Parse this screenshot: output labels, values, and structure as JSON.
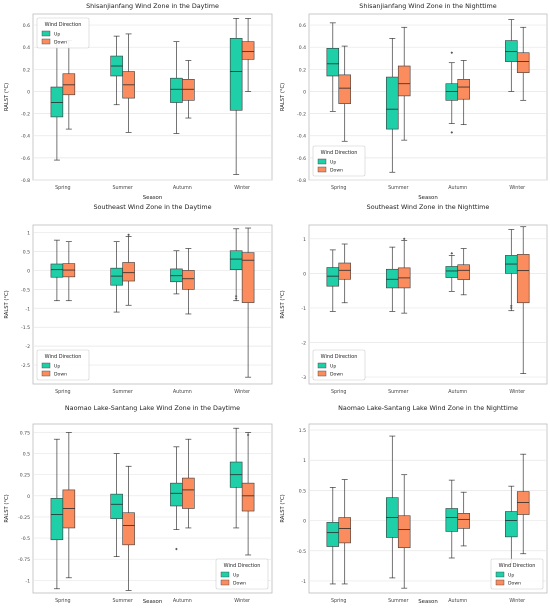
{
  "figure": {
    "colors": {
      "up": "#1fcfa8",
      "down": "#fb8c5e",
      "grid": "#e6e6e6",
      "axis": "#444444",
      "frame": "#bdbdbd"
    }
  },
  "chart_data": [
    {
      "type": "box",
      "title": "Shisanjianfang Wind Zone in the Daytime",
      "xlabel": "Season",
      "ylabel": "RALST (°C)",
      "categories": [
        "Spring",
        "Summer",
        "Autumn",
        "Winter"
      ],
      "yticks": [
        0.6,
        0.4,
        0.2,
        0.0,
        -0.2,
        -0.4,
        -0.6,
        -0.8
      ],
      "ylim": [
        -0.8,
        0.7
      ],
      "legend": {
        "title": "Wind Direction",
        "items": [
          "Up",
          "Down"
        ],
        "position": "top-left"
      },
      "series": [
        {
          "name": "Up",
          "color_key": "up",
          "boxes": [
            {
              "min": -0.62,
              "q1": -0.23,
              "median": -0.1,
              "q3": 0.04,
              "max": 0.45,
              "outliers": []
            },
            {
              "min": -0.12,
              "q1": 0.14,
              "median": 0.23,
              "q3": 0.32,
              "max": 0.5,
              "outliers": []
            },
            {
              "min": -0.38,
              "q1": -0.1,
              "median": 0.02,
              "q3": 0.12,
              "max": 0.45,
              "outliers": []
            },
            {
              "min": -0.75,
              "q1": -0.17,
              "median": 0.18,
              "q3": 0.48,
              "max": 0.66,
              "outliers": []
            }
          ]
        },
        {
          "name": "Down",
          "color_key": "down",
          "boxes": [
            {
              "min": -0.34,
              "q1": -0.03,
              "median": 0.06,
              "q3": 0.16,
              "max": 0.46,
              "outliers": []
            },
            {
              "min": -0.37,
              "q1": -0.06,
              "median": 0.06,
              "q3": 0.18,
              "max": 0.52,
              "outliers": []
            },
            {
              "min": -0.24,
              "q1": -0.08,
              "median": 0.02,
              "q3": 0.11,
              "max": 0.28,
              "outliers": []
            },
            {
              "min": 0.0,
              "q1": 0.29,
              "median": 0.36,
              "q3": 0.45,
              "max": 0.66,
              "outliers": []
            }
          ]
        }
      ]
    },
    {
      "type": "box",
      "title": "Shisanjianfang Wind Zone in the Nighttime",
      "xlabel": "Season",
      "ylabel": "RALST (°C)",
      "categories": [
        "Spring",
        "Summer",
        "Autumn",
        "Winter"
      ],
      "yticks": [
        0.6,
        0.4,
        0.2,
        0.0,
        -0.2,
        -0.4,
        -0.6,
        -0.8
      ],
      "ylim": [
        -0.8,
        0.7
      ],
      "legend": {
        "title": "Wind Direction",
        "items": [
          "Up",
          "Down"
        ],
        "position": "bottom-left"
      },
      "series": [
        {
          "name": "Up",
          "color_key": "up",
          "boxes": [
            {
              "min": -0.18,
              "q1": 0.14,
              "median": 0.25,
              "q3": 0.39,
              "max": 0.62,
              "outliers": []
            },
            {
              "min": -0.73,
              "q1": -0.34,
              "median": -0.16,
              "q3": 0.13,
              "max": 0.48,
              "outliers": []
            },
            {
              "min": -0.29,
              "q1": -0.08,
              "median": 0.0,
              "q3": 0.07,
              "max": 0.26,
              "outliers": [
                0.35,
                -0.37
              ]
            },
            {
              "min": 0.0,
              "q1": 0.27,
              "median": 0.36,
              "q3": 0.46,
              "max": 0.65,
              "outliers": []
            }
          ]
        },
        {
          "name": "Down",
          "color_key": "down",
          "boxes": [
            {
              "min": -0.45,
              "q1": -0.11,
              "median": 0.03,
              "q3": 0.15,
              "max": 0.41,
              "outliers": []
            },
            {
              "min": -0.44,
              "q1": -0.04,
              "median": 0.07,
              "q3": 0.23,
              "max": 0.58,
              "outliers": []
            },
            {
              "min": -0.3,
              "q1": -0.07,
              "median": 0.04,
              "q3": 0.11,
              "max": 0.28,
              "outliers": []
            },
            {
              "min": -0.08,
              "q1": 0.17,
              "median": 0.27,
              "q3": 0.35,
              "max": 0.58,
              "outliers": []
            }
          ]
        }
      ]
    },
    {
      "type": "box",
      "title": "Southeast Wind Zone in the Daytime",
      "xlabel": "",
      "ylabel": "RALST (°C)",
      "categories": [
        "Spring",
        "Summer",
        "Autumn",
        "Winter"
      ],
      "yticks": [
        1.0,
        0.5,
        0.0,
        -0.5,
        -1.0,
        -1.5,
        -2.0,
        -2.5
      ],
      "ylim": [
        -3.0,
        1.2
      ],
      "legend": {
        "title": "Wind Direction",
        "items": [
          "Up",
          "Down"
        ],
        "position": "bottom-left"
      },
      "series": [
        {
          "name": "Up",
          "color_key": "up",
          "boxes": [
            {
              "min": -0.8,
              "q1": -0.18,
              "median": 0.02,
              "q3": 0.17,
              "max": 0.8,
              "outliers": []
            },
            {
              "min": -1.1,
              "q1": -0.39,
              "median": -0.15,
              "q3": 0.06,
              "max": 0.76,
              "outliers": []
            },
            {
              "min": -0.62,
              "q1": -0.3,
              "median": -0.14,
              "q3": 0.04,
              "max": 0.52,
              "outliers": []
            },
            {
              "min": -0.8,
              "q1": 0.02,
              "median": 0.3,
              "q3": 0.52,
              "max": 1.1,
              "outliers": [
                -0.68,
                -0.74
              ]
            }
          ]
        },
        {
          "name": "Down",
          "color_key": "down",
          "boxes": [
            {
              "min": -0.8,
              "q1": -0.17,
              "median": 0.01,
              "q3": 0.18,
              "max": 0.76,
              "outliers": []
            },
            {
              "min": -0.92,
              "q1": -0.28,
              "median": -0.06,
              "q3": 0.21,
              "max": 0.9,
              "outliers": [
                0.94
              ]
            },
            {
              "min": -1.15,
              "q1": -0.5,
              "median": -0.22,
              "q3": 0.0,
              "max": 0.58,
              "outliers": []
            },
            {
              "min": -2.82,
              "q1": -0.85,
              "median": 0.27,
              "q3": 0.47,
              "max": 1.12,
              "outliers": []
            }
          ]
        }
      ]
    },
    {
      "type": "box",
      "title": "Southeast Wind Zone in the Nighttime",
      "xlabel": "",
      "ylabel": "RALST (°C)",
      "categories": [
        "Spring",
        "Summer",
        "Autumn",
        "Winter"
      ],
      "yticks": [
        1,
        0,
        -1,
        -2,
        -3
      ],
      "ylim": [
        -3.2,
        1.4
      ],
      "legend": {
        "title": "Wind Direction",
        "items": [
          "Up",
          "Down"
        ],
        "position": "bottom-left"
      },
      "series": [
        {
          "name": "Up",
          "color_key": "up",
          "boxes": [
            {
              "min": -1.1,
              "q1": -0.37,
              "median": -0.08,
              "q3": 0.17,
              "max": 0.68,
              "outliers": []
            },
            {
              "min": -1.1,
              "q1": -0.42,
              "median": -0.17,
              "q3": 0.12,
              "max": 0.76,
              "outliers": []
            },
            {
              "min": -0.52,
              "q1": -0.12,
              "median": 0.07,
              "q3": 0.2,
              "max": 0.52,
              "outliers": [
                0.58
              ]
            },
            {
              "min": -1.08,
              "q1": 0.0,
              "median": 0.27,
              "q3": 0.52,
              "max": 1.27,
              "outliers": [
                -0.94,
                -1.0
              ]
            }
          ]
        },
        {
          "name": "Down",
          "color_key": "down",
          "boxes": [
            {
              "min": -0.85,
              "q1": -0.17,
              "median": 0.09,
              "q3": 0.3,
              "max": 0.85,
              "outliers": []
            },
            {
              "min": -1.15,
              "q1": -0.42,
              "median": -0.13,
              "q3": 0.16,
              "max": 0.95,
              "outliers": [
                1.0
              ]
            },
            {
              "min": -0.62,
              "q1": -0.18,
              "median": 0.09,
              "q3": 0.25,
              "max": 0.72,
              "outliers": []
            },
            {
              "min": -2.9,
              "q1": -0.85,
              "median": 0.08,
              "q3": 0.55,
              "max": 1.35,
              "outliers": []
            }
          ]
        }
      ]
    },
    {
      "type": "box",
      "title": "Naomao Lake-Santang Lake Wind Zone in the Daytime",
      "xlabel": "Season",
      "ylabel": "RALST (°C)",
      "categories": [
        "Spring",
        "Summer",
        "Autumn",
        "Winter"
      ],
      "yticks": [
        0.75,
        0.5,
        0.25,
        0.0,
        -0.25,
        -0.5,
        -0.75,
        -1.0
      ],
      "ylim": [
        -1.15,
        0.85
      ],
      "legend": {
        "title": "Wind Direction",
        "items": [
          "Up",
          "Down"
        ],
        "position": "bottom-right"
      },
      "series": [
        {
          "name": "Up",
          "color_key": "up",
          "boxes": [
            {
              "min": -1.1,
              "q1": -0.52,
              "median": -0.22,
              "q3": -0.03,
              "max": 0.67,
              "outliers": []
            },
            {
              "min": -0.72,
              "q1": -0.27,
              "median": -0.1,
              "q3": 0.02,
              "max": 0.5,
              "outliers": []
            },
            {
              "min": -0.4,
              "q1": -0.12,
              "median": 0.03,
              "q3": 0.15,
              "max": 0.58,
              "outliers": [
                -0.63
              ]
            },
            {
              "min": -0.38,
              "q1": 0.1,
              "median": 0.25,
              "q3": 0.4,
              "max": 0.8,
              "outliers": []
            }
          ]
        },
        {
          "name": "Down",
          "color_key": "down",
          "boxes": [
            {
              "min": -0.97,
              "q1": -0.38,
              "median": -0.15,
              "q3": 0.07,
              "max": 0.75,
              "outliers": []
            },
            {
              "min": -1.12,
              "q1": -0.58,
              "median": -0.35,
              "q3": -0.2,
              "max": 0.35,
              "outliers": []
            },
            {
              "min": -0.38,
              "q1": -0.15,
              "median": 0.07,
              "q3": 0.21,
              "max": 0.67,
              "outliers": []
            },
            {
              "min": -0.7,
              "q1": -0.18,
              "median": 0.0,
              "q3": 0.15,
              "max": 0.75,
              "outliers": [
                0.72
              ]
            }
          ]
        }
      ]
    },
    {
      "type": "box",
      "title": "Naomao Lake-Santang Lake Wind Zone in the Nighttime",
      "xlabel": "Season",
      "ylabel": "RALST (°C)",
      "categories": [
        "Spring",
        "Summer",
        "Autumn",
        "Winter"
      ],
      "yticks": [
        1.5,
        1.0,
        0.5,
        0.0,
        -0.5,
        -1.0
      ],
      "ylim": [
        -1.2,
        1.6
      ],
      "legend": {
        "title": "Wind Direction",
        "items": [
          "Up",
          "Down"
        ],
        "position": "bottom-right"
      },
      "series": [
        {
          "name": "Up",
          "color_key": "up",
          "boxes": [
            {
              "min": -1.05,
              "q1": -0.43,
              "median": -0.2,
              "q3": -0.03,
              "max": 0.55,
              "outliers": []
            },
            {
              "min": -0.95,
              "q1": -0.28,
              "median": 0.05,
              "q3": 0.38,
              "max": 1.4,
              "outliers": []
            },
            {
              "min": -0.62,
              "q1": -0.18,
              "median": 0.05,
              "q3": 0.2,
              "max": 0.67,
              "outliers": []
            },
            {
              "min": -0.72,
              "q1": -0.27,
              "median": 0.0,
              "q3": 0.15,
              "max": 0.57,
              "outliers": []
            }
          ]
        },
        {
          "name": "Down",
          "color_key": "down",
          "boxes": [
            {
              "min": -1.05,
              "q1": -0.37,
              "median": -0.13,
              "q3": 0.05,
              "max": 0.68,
              "outliers": []
            },
            {
              "min": -1.12,
              "q1": -0.45,
              "median": -0.15,
              "q3": 0.08,
              "max": 0.76,
              "outliers": []
            },
            {
              "min": -0.42,
              "q1": -0.13,
              "median": 0.02,
              "q3": 0.12,
              "max": 0.47,
              "outliers": []
            },
            {
              "min": -0.55,
              "q1": 0.1,
              "median": 0.3,
              "q3": 0.48,
              "max": 1.1,
              "outliers": []
            }
          ]
        }
      ]
    }
  ]
}
